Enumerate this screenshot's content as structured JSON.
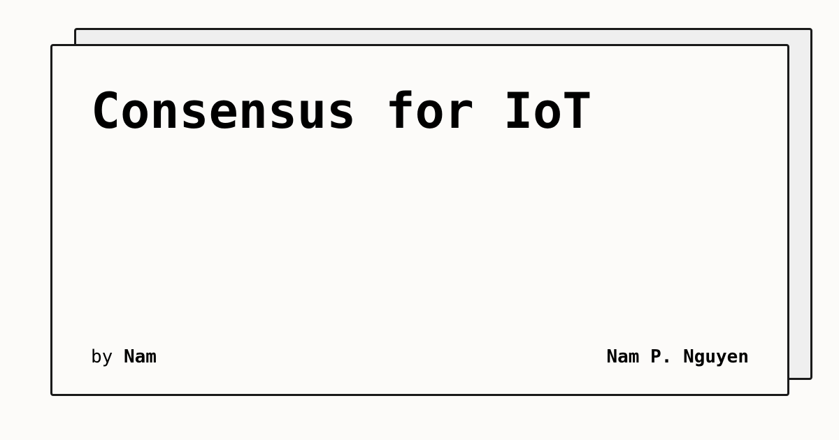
{
  "card": {
    "title": "Consensus for IoT",
    "byline_prefix": "by",
    "byline_handle": "Nam",
    "author_name": "Nam P. Nguyen"
  },
  "colors": {
    "background": "#fcfbf9",
    "back_card": "#efefef",
    "border": "#1a1a1a",
    "text": "#000000"
  }
}
